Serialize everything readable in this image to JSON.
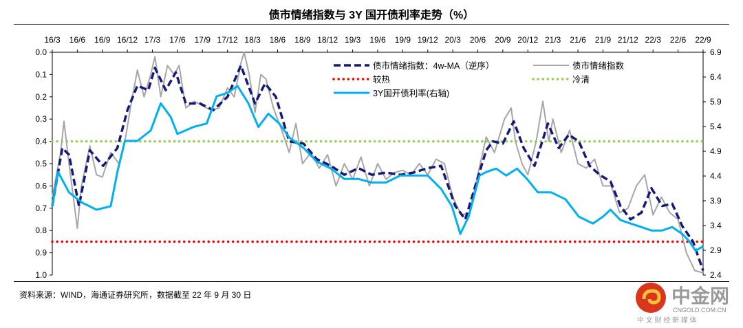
{
  "chart_data": {
    "type": "line",
    "title": "债市情绪指数与 3Y 国开债利率走势（%）",
    "x_unit": "months since 2016/3",
    "x_ticks": [
      "16/3",
      "16/6",
      "16/9",
      "16/12",
      "17/3",
      "17/6",
      "17/9",
      "17/12",
      "18/3",
      "18/6",
      "18/9",
      "18/12",
      "19/3",
      "19/6",
      "19/9",
      "19/12",
      "20/3",
      "20/6",
      "20/9",
      "20/12",
      "21/3",
      "21/6",
      "21/9",
      "21/12",
      "22/3",
      "22/6",
      "22/9"
    ],
    "x_range": [
      0,
      78
    ],
    "left_axis": {
      "range": [
        0.0,
        1.0
      ],
      "inverted": true,
      "ticks": [
        "0.0",
        "0.1",
        "0.2",
        "0.3",
        "0.4",
        "0.5",
        "0.6",
        "0.7",
        "0.8",
        "0.9",
        "1.0"
      ]
    },
    "right_axis": {
      "range": [
        2.4,
        6.9
      ],
      "ticks": [
        "6.9",
        "6.4",
        "5.9",
        "5.4",
        "4.9",
        "4.4",
        "3.9",
        "3.4",
        "2.9",
        "2.4"
      ]
    },
    "series": [
      {
        "name": "债市情绪指数：4w-MA（逆序）",
        "axis": "left",
        "color": "#14197a",
        "style": "dashed",
        "x": [
          0,
          1.2,
          2,
          3.2,
          4.5,
          6.1,
          7.8,
          9,
          10.2,
          11.5,
          12.3,
          13.6,
          14.8,
          16,
          17.7,
          19.3,
          21,
          22.6,
          24.3,
          25.5,
          26.8,
          28.4,
          30.1,
          31.7,
          33.4,
          35,
          36.7,
          38.3,
          40,
          41.7,
          43.3,
          45,
          46.6,
          48.3,
          49.5,
          50.7,
          52,
          52.8,
          54,
          55.3,
          56.5,
          57.8,
          59.4,
          60.7,
          61.9,
          63.1,
          64.4,
          65.6,
          66.9,
          68.1,
          69.3,
          70.6,
          71.8,
          73.1,
          74.3,
          75.5,
          76.8,
          78
        ],
        "y": [
          0.69,
          0.43,
          0.46,
          0.69,
          0.44,
          0.51,
          0.43,
          0.26,
          0.15,
          0.17,
          0.07,
          0.17,
          0.09,
          0.23,
          0.23,
          0.26,
          0.2,
          0.06,
          0.23,
          0.14,
          0.2,
          0.4,
          0.41,
          0.48,
          0.51,
          0.55,
          0.52,
          0.55,
          0.54,
          0.55,
          0.54,
          0.52,
          0.51,
          0.69,
          0.75,
          0.6,
          0.44,
          0.4,
          0.41,
          0.31,
          0.43,
          0.51,
          0.32,
          0.43,
          0.37,
          0.4,
          0.51,
          0.55,
          0.58,
          0.69,
          0.75,
          0.72,
          0.61,
          0.69,
          0.68,
          0.78,
          0.85,
          0.98
        ]
      },
      {
        "name": "债市情绪指数",
        "axis": "left",
        "color": "#a6a6a6",
        "style": "solid",
        "x": [
          0,
          1,
          1.4,
          2,
          3,
          3.5,
          4.5,
          5.3,
          6,
          7,
          8,
          8.8,
          9.5,
          10.2,
          11,
          11.8,
          12.3,
          13,
          13.8,
          14.6,
          15.2,
          16,
          17,
          18,
          19,
          20,
          21,
          21.8,
          22.6,
          23,
          23.6,
          24.3,
          25,
          25.6,
          26.5,
          27.5,
          28.4,
          29.2,
          30,
          31,
          32,
          33,
          34,
          35,
          36,
          37,
          38,
          39,
          40,
          41,
          42,
          43,
          44,
          45,
          46,
          47,
          48,
          49,
          50,
          51,
          52,
          53,
          54.2,
          55,
          55.5,
          56.3,
          57,
          58,
          58.8,
          59.5,
          60,
          61,
          62,
          63,
          64,
          65,
          66,
          67,
          68,
          69,
          70,
          71,
          72,
          73,
          74,
          75,
          76,
          77,
          78
        ],
        "y": [
          0.65,
          0.45,
          0.31,
          0.5,
          0.79,
          0.6,
          0.42,
          0.55,
          0.56,
          0.45,
          0.5,
          0.38,
          0.22,
          0.08,
          0.2,
          0.1,
          0.02,
          0.2,
          0.06,
          0.1,
          0.06,
          0.25,
          0.22,
          0.24,
          0.26,
          0.25,
          0.16,
          0.2,
          0.05,
          0.0,
          0.1,
          0.27,
          0.1,
          0.12,
          0.25,
          0.35,
          0.45,
          0.32,
          0.5,
          0.45,
          0.52,
          0.46,
          0.6,
          0.5,
          0.57,
          0.47,
          0.6,
          0.5,
          0.57,
          0.54,
          0.53,
          0.55,
          0.5,
          0.55,
          0.48,
          0.5,
          0.65,
          0.73,
          0.72,
          0.55,
          0.38,
          0.45,
          0.3,
          0.25,
          0.4,
          0.5,
          0.55,
          0.4,
          0.22,
          0.4,
          0.3,
          0.45,
          0.35,
          0.5,
          0.52,
          0.48,
          0.6,
          0.6,
          0.72,
          0.7,
          0.6,
          0.55,
          0.73,
          0.65,
          0.72,
          0.75,
          0.9,
          0.98,
          0.99
        ]
      },
      {
        "name": "3Y国开债利率(右轴)",
        "axis": "right",
        "color": "#00b0f0",
        "style": "solid",
        "x": [
          0,
          0.7,
          2,
          3.6,
          5.3,
          7,
          7.8,
          8.7,
          10.2,
          11.8,
          13,
          14.2,
          15,
          16.9,
          18.5,
          19.7,
          21,
          22.2,
          23.5,
          24.7,
          25.9,
          27.2,
          28.4,
          30.1,
          31.7,
          33.4,
          35,
          36.7,
          38.3,
          40,
          41.7,
          43.3,
          45,
          46.6,
          47.9,
          48.9,
          49.9,
          51.2,
          52,
          53.2,
          54.4,
          55.7,
          56.9,
          58.2,
          59.8,
          61.5,
          63.1,
          64.8,
          66,
          66.9,
          68.1,
          69.3,
          70.6,
          71.8,
          73.1,
          74.3,
          75.5,
          76.3,
          77.1,
          78
        ],
        "y": [
          3.79,
          4.48,
          4.07,
          3.86,
          3.72,
          3.79,
          4.48,
          5.11,
          5.11,
          5.32,
          5.87,
          5.59,
          5.25,
          5.39,
          5.46,
          6.01,
          6.08,
          6.22,
          5.87,
          5.39,
          5.66,
          5.46,
          5.18,
          4.97,
          4.69,
          4.55,
          4.34,
          4.34,
          4.27,
          4.27,
          4.41,
          4.41,
          4.41,
          4.14,
          3.79,
          3.23,
          3.58,
          4.41,
          4.48,
          4.55,
          4.41,
          4.55,
          4.34,
          4.07,
          4.07,
          3.93,
          3.58,
          3.44,
          3.58,
          3.72,
          3.51,
          3.44,
          3.37,
          3.3,
          3.3,
          3.37,
          3.23,
          3.09,
          2.89,
          2.98
        ]
      }
    ],
    "reference_lines": [
      {
        "name": "较热",
        "axis": "left",
        "value": 0.85,
        "color": "#ff0000",
        "style": "dotted"
      },
      {
        "name": "冷清",
        "axis": "left",
        "value": 0.4,
        "color": "#92d050",
        "style": "dotted"
      }
    ],
    "legend": {
      "placement": "top-center",
      "items": [
        "债市情绪指数：4w-MA（逆序）",
        "债市情绪指数",
        "较热",
        "冷清",
        "3Y国开债利率(右轴)"
      ]
    }
  },
  "source": "资料来源：WIND，海通证券研究所，数据截至 22 年 9 月 30 日",
  "watermark": {
    "name": "中金网",
    "domain": "CNGOLD.COM.CN",
    "tagline": "中 文 财 经 新 媒 体"
  }
}
